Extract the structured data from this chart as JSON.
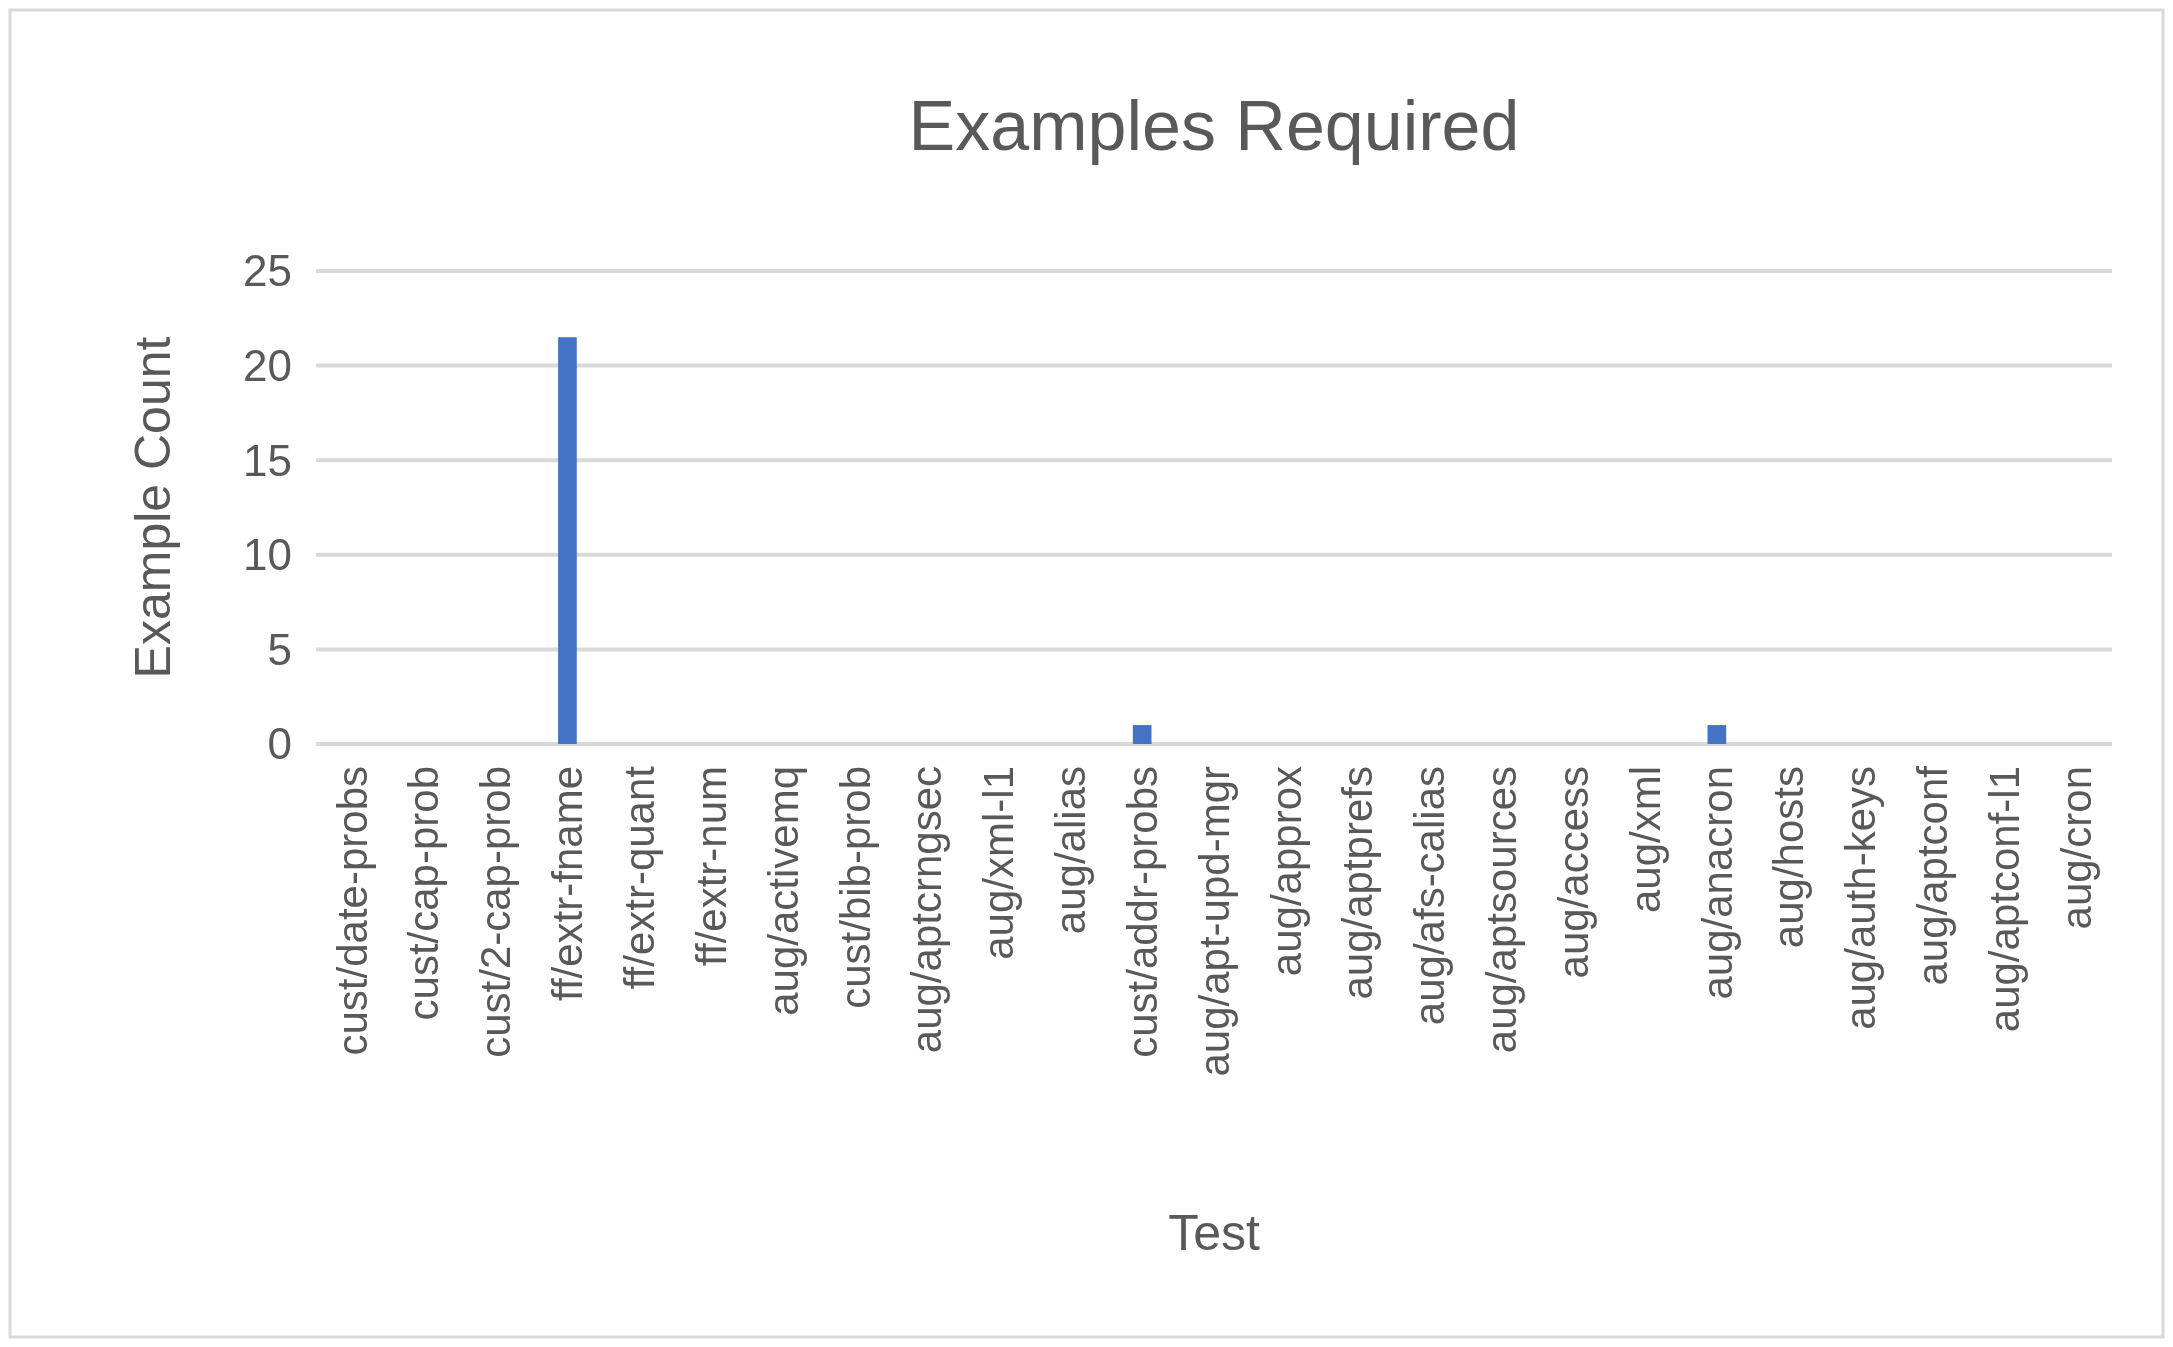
{
  "chart_data": {
    "type": "bar",
    "title": "Examples Required",
    "xlabel": "Test",
    "ylabel": "Example Count",
    "categories": [
      "cust/date-probs",
      "cust/cap-prob",
      "cust/2-cap-prob",
      "ff/extr-fname",
      "ff/extr-quant",
      "ff/extr-num",
      "aug/activemq",
      "cust/bib-prob",
      "aug/aptcrngsec",
      "aug/xml-l1",
      "aug/alias",
      "cust/addr-probs",
      "aug/apt-upd-mgr",
      "aug/approx",
      "aug/aptprefs",
      "aug/afs-calias",
      "aug/aptsources",
      "aug/access",
      "aug/xml",
      "aug/anacron",
      "aug/hosts",
      "aug/auth-keys",
      "aug/aptconf",
      "aug/aptconf-l1",
      "aug/cron"
    ],
    "values": [
      0,
      0,
      0,
      21.5,
      0,
      0,
      0,
      0,
      0,
      0,
      0,
      1,
      0,
      0,
      0,
      0,
      0,
      0,
      0,
      1,
      0,
      0,
      0,
      0,
      0
    ],
    "color": "#4472c4",
    "ylim": [
      0,
      25
    ],
    "yticks": [
      0,
      5,
      10,
      15,
      20,
      25
    ],
    "grid": "y"
  }
}
